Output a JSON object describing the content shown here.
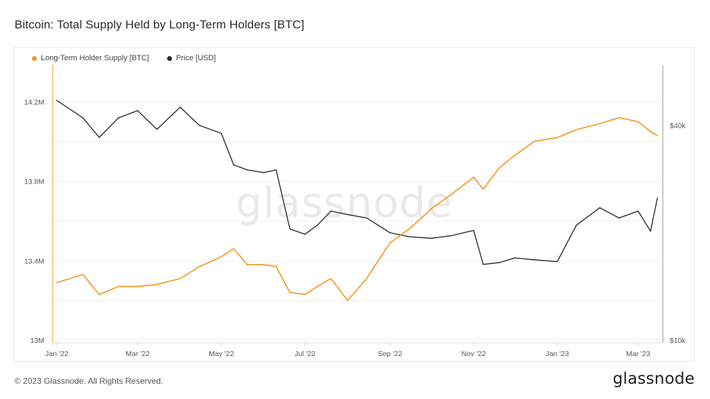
{
  "title": "Bitcoin: Total Supply Held by Long-Term Holders [BTC]",
  "footer": "© 2023 Glassnode. All Rights Reserved.",
  "brand": "glassnode",
  "watermark": "glassnode",
  "colors": {
    "lth": "#f7931a",
    "price": "#2b2b2b"
  },
  "chart_data": {
    "type": "line",
    "title": "Bitcoin: Total Supply Held by Long-Term Holders [BTC]",
    "legend": [
      {
        "name": "Long-Term Holder Supply [BTC]",
        "color": "#f7931a"
      },
      {
        "name": "Price [USD]",
        "color": "#2b2b2b"
      }
    ],
    "legend_position": "top-left",
    "x_tick_labels": [
      "Jan '22",
      "Mar '22",
      "May '22",
      "Jul '22",
      "Sep '22",
      "Nov '22",
      "Jan '23",
      "Mar '23"
    ],
    "y_left": {
      "ticks": [
        "13M",
        "13.4M",
        "13.8M",
        "14.2M"
      ],
      "tick_values": [
        13.0,
        13.4,
        13.8,
        14.2
      ],
      "range": [
        13.0,
        14.2
      ]
    },
    "y_right": {
      "ticks": [
        "$10k",
        "$40k"
      ],
      "tick_values": [
        10000,
        40000
      ],
      "scale": "log"
    },
    "grid": true,
    "x": [
      "2022-01-01",
      "2022-01-20",
      "2022-02-01",
      "2022-02-15",
      "2022-03-01",
      "2022-03-15",
      "2022-04-01",
      "2022-04-15",
      "2022-05-01",
      "2022-05-10",
      "2022-05-20",
      "2022-06-01",
      "2022-06-10",
      "2022-06-20",
      "2022-07-01",
      "2022-07-10",
      "2022-07-20",
      "2022-08-01",
      "2022-08-15",
      "2022-09-01",
      "2022-09-15",
      "2022-10-01",
      "2022-10-15",
      "2022-11-01",
      "2022-11-08",
      "2022-11-20",
      "2022-12-01",
      "2022-12-15",
      "2023-01-01",
      "2023-01-15",
      "2023-02-01",
      "2023-02-15",
      "2023-03-01",
      "2023-03-10",
      "2023-03-15"
    ],
    "series": [
      {
        "name": "Long-Term Holder Supply [BTC]",
        "values": [
          13.29,
          13.33,
          13.23,
          13.27,
          13.27,
          13.28,
          13.31,
          13.37,
          13.42,
          13.46,
          13.38,
          13.38,
          13.37,
          13.24,
          13.23,
          13.27,
          13.31,
          13.2,
          13.31,
          13.49,
          13.56,
          13.66,
          13.73,
          13.82,
          13.76,
          13.87,
          13.93,
          14.0,
          14.02,
          14.06,
          14.09,
          14.12,
          14.1,
          14.05,
          14.03
        ]
      },
      {
        "name": "Price [USD]",
        "values": [
          47000,
          42000,
          37000,
          42000,
          44000,
          39000,
          45000,
          40000,
          38000,
          31000,
          30000,
          29500,
          30000,
          20500,
          19800,
          21000,
          23000,
          22500,
          22000,
          20000,
          19500,
          19300,
          19600,
          20300,
          16300,
          16500,
          17000,
          16800,
          16600,
          21000,
          23500,
          22000,
          23000,
          20200,
          25000
        ]
      }
    ]
  }
}
